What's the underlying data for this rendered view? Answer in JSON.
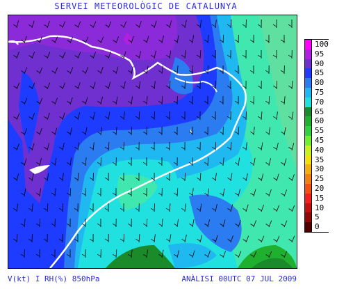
{
  "title": "SERVEI METEOROLÒGIC DE CATALUNYA",
  "footer": {
    "left": "V(kt) I RH(%) 850hPa",
    "right": "ANÀLISI 00UTC 07 JUL 2009"
  },
  "legend": [
    {
      "label": "100",
      "color": "#ff00ff"
    },
    {
      "label": "95",
      "color": "#b020e0"
    },
    {
      "label": "90",
      "color": "#7030d0"
    },
    {
      "label": "85",
      "color": "#1e3cff"
    },
    {
      "label": "80",
      "color": "#2b7cf0"
    },
    {
      "label": "75",
      "color": "#20b8f0"
    },
    {
      "label": "70",
      "color": "#20e0e0"
    },
    {
      "label": "65",
      "color": "#1a8a2a"
    },
    {
      "label": "60",
      "color": "#20b030"
    },
    {
      "label": "55",
      "color": "#30d040"
    },
    {
      "label": "45",
      "color": "#70ee30"
    },
    {
      "label": "40",
      "color": "#c8f020"
    },
    {
      "label": "35",
      "color": "#f0e010"
    },
    {
      "label": "30",
      "color": "#f0b010"
    },
    {
      "label": "25",
      "color": "#f08010"
    },
    {
      "label": "20",
      "color": "#f05010"
    },
    {
      "label": "15",
      "color": "#f02020"
    },
    {
      "label": "10",
      "color": "#c01010"
    },
    {
      "label": "5",
      "color": "#900808"
    },
    {
      "label": "0",
      "color": "#500000"
    }
  ]
}
